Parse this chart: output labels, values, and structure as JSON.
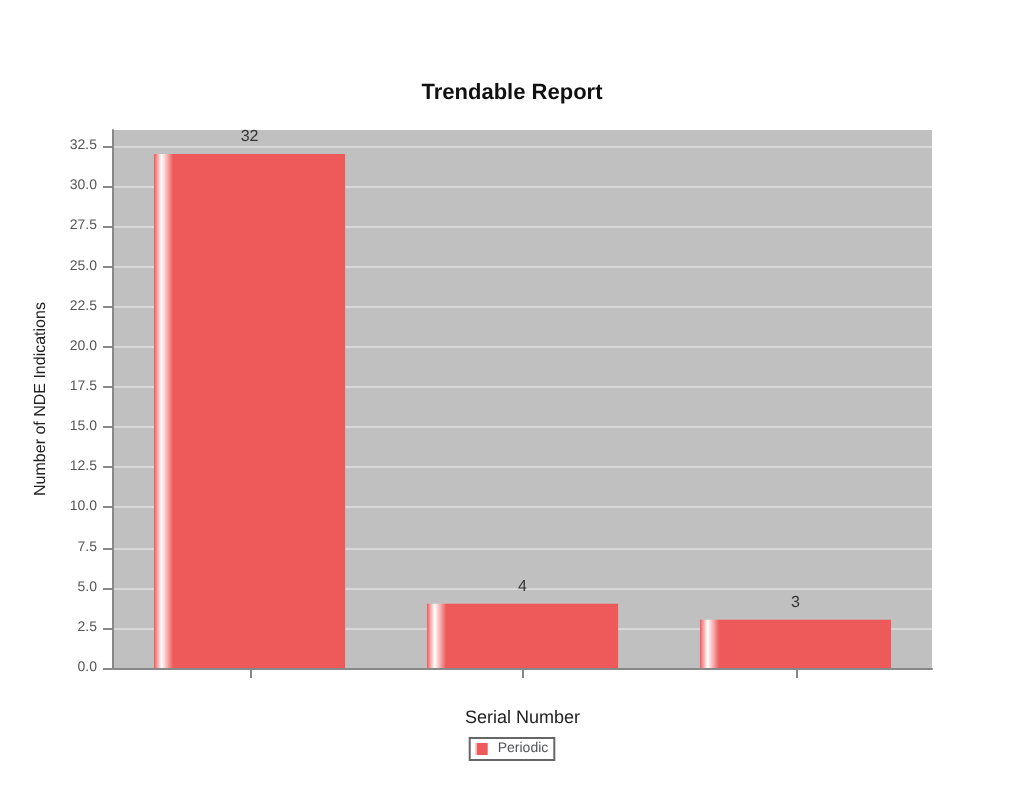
{
  "chart_data": {
    "type": "bar",
    "title": "Trendable Report",
    "xlabel": "Serial Number",
    "ylabel": "Number of NDE Indications",
    "categories": [
      null,
      null,
      null
    ],
    "series": [
      {
        "name": "Periodic",
        "color": "#ee5a5a",
        "values": [
          32,
          4,
          3
        ]
      }
    ],
    "ylim": [
      0,
      33.5
    ],
    "yticks": [
      {
        "value": 0,
        "label": "0.0"
      },
      {
        "value": 2.5,
        "label": "2.5"
      },
      {
        "value": 5,
        "label": "5.0"
      },
      {
        "value": 7.5,
        "label": "7.5"
      },
      {
        "value": 10,
        "label": "10.0"
      },
      {
        "value": 12.5,
        "label": "12.5"
      },
      {
        "value": 15,
        "label": "15.0"
      },
      {
        "value": 17.5,
        "label": "17.5"
      },
      {
        "value": 20,
        "label": "20.0"
      },
      {
        "value": 22.5,
        "label": "22.5"
      },
      {
        "value": 25,
        "label": "25.0"
      },
      {
        "value": 27.5,
        "label": "27.5"
      },
      {
        "value": 30,
        "label": "30.0"
      },
      {
        "value": 32.5,
        "label": "32.5"
      }
    ],
    "grid": "y",
    "legend": "bottom",
    "data_labels": true
  }
}
